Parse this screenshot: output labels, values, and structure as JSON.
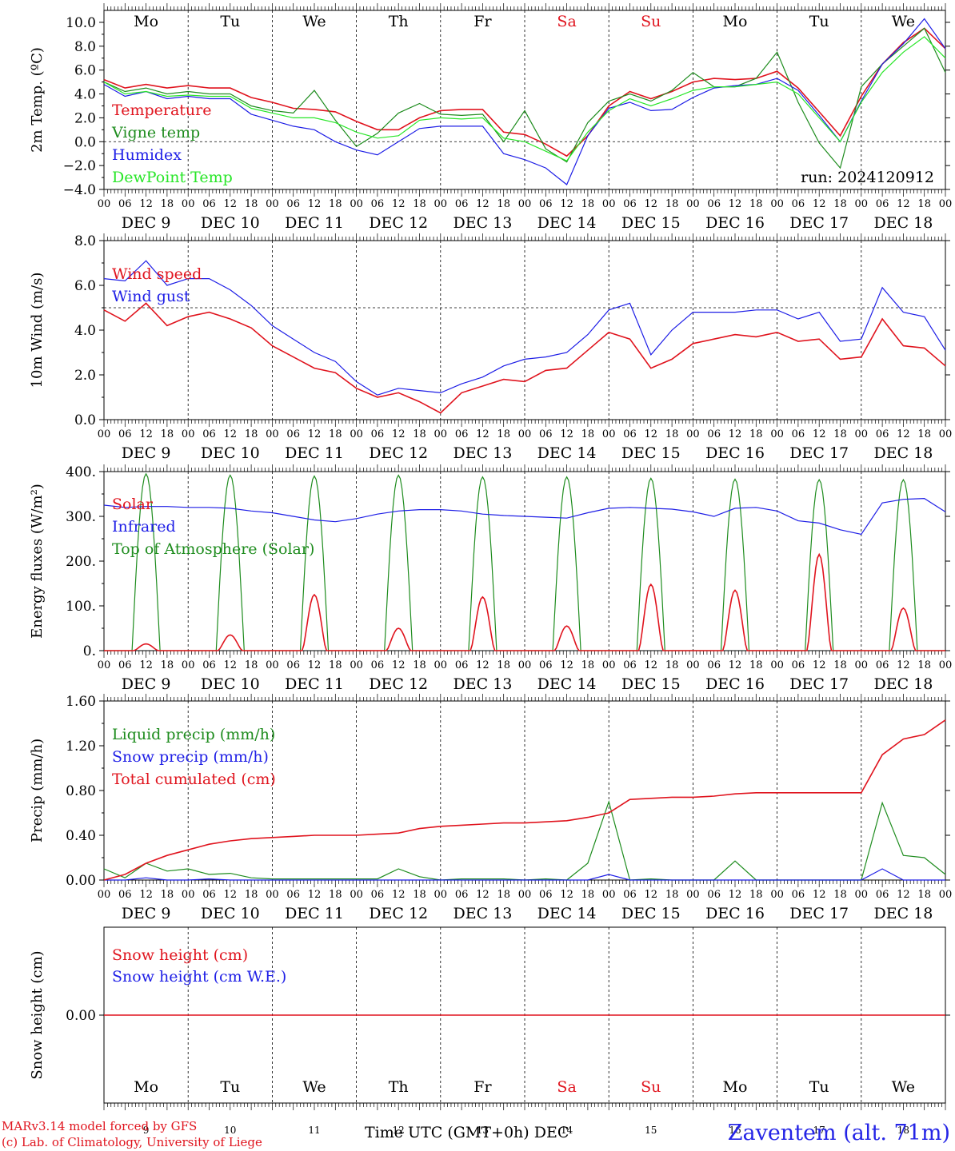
{
  "colors": {
    "red": "#e0141e",
    "green": "#1e8c1e",
    "blue": "#1e1ee6",
    "light_green": "#28e628",
    "weekend": "#e0141e"
  },
  "weekdays": [
    "Mo",
    "Tu",
    "We",
    "Th",
    "Fr",
    "Sa",
    "Su",
    "Mo",
    "Tu",
    "We"
  ],
  "weekend_flags": [
    false,
    false,
    false,
    false,
    false,
    true,
    true,
    false,
    false,
    false
  ],
  "date_labels": [
    "DEC  9",
    "DEC 10",
    "DEC 11",
    "DEC 12",
    "DEC 13",
    "DEC 14",
    "DEC 15",
    "DEC 16",
    "DEC 17",
    "DEC 18"
  ],
  "day_numbers": [
    "9",
    "10",
    "11",
    "12",
    "13",
    "14",
    "15",
    "16",
    "17",
    "18"
  ],
  "hour_ticks": [
    "00",
    "06",
    "12",
    "18"
  ],
  "hour_end": "00",
  "footer": {
    "model": "MARv3.14 model forced by GFS",
    "credit": "(c) Lab. of Climatology, University of Liege",
    "xaxis": "Time UTC (GMT+0h) DEC",
    "station": "Zaventem (alt. 71m)"
  },
  "chart_data": [
    {
      "type": "line",
      "ylabel": "2m Temp. (ºC)",
      "ylim": [
        -4,
        11
      ],
      "yticks": [
        -4,
        -2,
        0,
        2,
        4,
        6,
        8,
        10
      ],
      "ytick_labels": [
        "−4.0",
        "−2.0",
        "0.0",
        "2.0",
        "4.0",
        "6.0",
        "8.0",
        "10.0"
      ],
      "reference_line": 0,
      "annotation": "run: 2024120912",
      "legend": [
        "Temperature",
        "Vigne temp",
        "Humidex",
        "DewPoint Temp"
      ],
      "x_hours": [
        0,
        6,
        12,
        18,
        24,
        30,
        36,
        42,
        48,
        54,
        60,
        66,
        72,
        78,
        84,
        90,
        96,
        102,
        108,
        114,
        120,
        126,
        132,
        138,
        144,
        150,
        156,
        162,
        168,
        174,
        180,
        186,
        192,
        198,
        204,
        210,
        216,
        222,
        228,
        234,
        240
      ],
      "series": [
        {
          "name": "Temperature",
          "color": "red",
          "values": [
            5.2,
            4.5,
            4.8,
            4.5,
            4.7,
            4.5,
            4.5,
            3.7,
            3.3,
            2.8,
            2.7,
            2.5,
            1.7,
            1.0,
            1.0,
            2.0,
            2.6,
            2.7,
            2.7,
            0.8,
            0.6,
            -0.2,
            -1.2,
            0.5,
            3.0,
            4.2,
            3.6,
            4.2,
            5.0,
            5.3,
            5.2,
            5.3,
            5.9,
            4.5,
            2.5,
            0.5,
            3.8,
            6.5,
            8.3,
            9.5,
            7.8
          ]
        },
        {
          "name": "Vigne temp",
          "color": "green",
          "values": [
            5.0,
            4.2,
            4.5,
            4.0,
            4.2,
            4.0,
            4.0,
            3.0,
            2.6,
            2.4,
            4.3,
            1.8,
            -0.4,
            0.7,
            2.4,
            3.2,
            2.3,
            2.2,
            2.3,
            0.0,
            2.6,
            -0.6,
            -1.7,
            1.6,
            3.4,
            4.0,
            3.4,
            4.3,
            5.8,
            4.6,
            4.6,
            5.3,
            7.5,
            3.3,
            -0.1,
            -2.2,
            4.6,
            6.5,
            8.0,
            9.5,
            5.8
          ]
        },
        {
          "name": "Humidex",
          "color": "blue",
          "values": [
            4.8,
            3.8,
            4.2,
            3.6,
            3.8,
            3.6,
            3.6,
            2.3,
            1.8,
            1.3,
            1.0,
            0.0,
            -0.7,
            -1.1,
            0.0,
            1.1,
            1.3,
            1.3,
            1.3,
            -1.0,
            -1.5,
            -2.2,
            -3.6,
            0.5,
            2.8,
            3.3,
            2.6,
            2.7,
            3.7,
            4.5,
            4.7,
            4.8,
            5.3,
            4.3,
            2.2,
            0.0,
            3.4,
            6.5,
            8.2,
            10.3,
            7.8
          ]
        },
        {
          "name": "DewPoint Temp",
          "color": "light_green",
          "values": [
            5.0,
            4.0,
            4.2,
            3.8,
            3.9,
            3.8,
            3.8,
            2.8,
            2.4,
            2.0,
            2.0,
            1.6,
            0.8,
            0.3,
            0.5,
            1.8,
            2.0,
            1.9,
            2.0,
            0.3,
            0.0,
            -0.8,
            -1.6,
            0.8,
            2.6,
            3.6,
            3.0,
            3.6,
            4.3,
            4.6,
            4.6,
            4.8,
            5.0,
            4.0,
            2.0,
            0.0,
            3.3,
            5.8,
            7.5,
            8.8,
            7.0
          ]
        }
      ]
    },
    {
      "type": "line",
      "ylabel": "10m Wind (m/s)",
      "ylim": [
        0,
        8
      ],
      "yticks": [
        0,
        2,
        4,
        6,
        8
      ],
      "ytick_labels": [
        "0.0",
        "2.0",
        "4.0",
        "6.0",
        "8.0"
      ],
      "reference_line": 5,
      "legend": [
        "Wind speed",
        "Wind gust"
      ],
      "x_hours": [
        0,
        6,
        12,
        18,
        24,
        30,
        36,
        42,
        48,
        54,
        60,
        66,
        72,
        78,
        84,
        90,
        96,
        102,
        108,
        114,
        120,
        126,
        132,
        138,
        144,
        150,
        156,
        162,
        168,
        174,
        180,
        186,
        192,
        198,
        204,
        210,
        216,
        222,
        228,
        234,
        240
      ],
      "series": [
        {
          "name": "Wind speed",
          "color": "red",
          "values": [
            4.9,
            4.4,
            5.2,
            4.2,
            4.6,
            4.8,
            4.5,
            4.1,
            3.3,
            2.8,
            2.3,
            2.1,
            1.4,
            1.0,
            1.2,
            0.8,
            0.3,
            1.2,
            1.5,
            1.8,
            1.7,
            2.2,
            2.3,
            3.1,
            3.9,
            3.6,
            2.3,
            2.7,
            3.4,
            3.6,
            3.8,
            3.7,
            3.9,
            3.5,
            3.6,
            2.7,
            2.8,
            4.5,
            3.3,
            3.2,
            2.4
          ]
        },
        {
          "name": "Wind gust",
          "color": "blue",
          "values": [
            6.3,
            6.2,
            7.1,
            6.0,
            6.3,
            6.3,
            5.8,
            5.1,
            4.2,
            3.6,
            3.0,
            2.6,
            1.7,
            1.1,
            1.4,
            1.3,
            1.2,
            1.6,
            1.9,
            2.4,
            2.7,
            2.8,
            3.0,
            3.8,
            4.9,
            5.2,
            2.9,
            4.0,
            4.8,
            4.8,
            4.8,
            4.9,
            4.9,
            4.5,
            4.8,
            3.5,
            3.6,
            5.9,
            4.8,
            4.6,
            3.1
          ]
        }
      ]
    },
    {
      "type": "line",
      "ylabel": "Energy fluxes (W/m²)",
      "ylim": [
        0,
        400
      ],
      "yticks": [
        0,
        100,
        200,
        300,
        400
      ],
      "ytick_labels": [
        "0.",
        "100.",
        "200.",
        "300.",
        "400."
      ],
      "legend": [
        "Solar",
        "Infrared",
        "Top of Atmosphere (Solar)"
      ],
      "daily_toa_peak": [
        395,
        392,
        390,
        392,
        388,
        388,
        385,
        383,
        382,
        382
      ],
      "daily_solar_peak": [
        15,
        35,
        125,
        50,
        120,
        55,
        148,
        135,
        215,
        95
      ],
      "x_hours": [
        0,
        6,
        12,
        18,
        24,
        30,
        36,
        42,
        48,
        54,
        60,
        66,
        72,
        78,
        84,
        90,
        96,
        102,
        108,
        114,
        120,
        126,
        132,
        138,
        144,
        150,
        156,
        162,
        168,
        174,
        180,
        186,
        192,
        198,
        204,
        210,
        216,
        222,
        228,
        234,
        240
      ],
      "series": [
        {
          "name": "Infrared",
          "color": "blue",
          "values": [
            325,
            320,
            322,
            322,
            320,
            320,
            318,
            312,
            308,
            300,
            292,
            288,
            295,
            305,
            312,
            315,
            315,
            312,
            305,
            302,
            300,
            298,
            296,
            308,
            318,
            320,
            318,
            316,
            310,
            300,
            318,
            320,
            312,
            290,
            285,
            270,
            260,
            330,
            338,
            340,
            310
          ]
        }
      ]
    },
    {
      "type": "line",
      "ylabel": "Precip (mm/h)",
      "ylim": [
        0,
        1.6
      ],
      "yticks": [
        0,
        0.4,
        0.8,
        1.2,
        1.6
      ],
      "ytick_labels": [
        "0.00",
        "0.40",
        "0.80",
        "1.20",
        "1.60"
      ],
      "legend": [
        "Liquid precip (mm/h)",
        "Snow precip (mm/h)",
        "Total cumulated (cm)"
      ],
      "x_hours": [
        0,
        6,
        12,
        18,
        24,
        30,
        36,
        42,
        48,
        54,
        60,
        66,
        72,
        78,
        84,
        90,
        96,
        102,
        108,
        114,
        120,
        126,
        132,
        138,
        144,
        150,
        156,
        162,
        168,
        174,
        180,
        186,
        192,
        198,
        204,
        210,
        216,
        222,
        228,
        234,
        240
      ],
      "series": [
        {
          "name": "Liquid precip (mm/h)",
          "color": "green",
          "values": [
            0.1,
            0.02,
            0.15,
            0.08,
            0.1,
            0.05,
            0.06,
            0.02,
            0.01,
            0.01,
            0.01,
            0.01,
            0.01,
            0.01,
            0.1,
            0.03,
            0.0,
            0.01,
            0.01,
            0.01,
            0.0,
            0.01,
            0.0,
            0.15,
            0.7,
            0.0,
            0.01,
            0.0,
            0.0,
            0.0,
            0.17,
            0.0,
            0.0,
            0.0,
            0.0,
            0.0,
            0.0,
            0.69,
            0.22,
            0.2,
            0.05
          ]
        },
        {
          "name": "Snow precip (mm/h)",
          "color": "blue",
          "values": [
            0.0,
            0.0,
            0.02,
            0.0,
            0.0,
            0.01,
            0.0,
            0.0,
            0.0,
            0.0,
            0.0,
            0.0,
            0.0,
            0.0,
            0.0,
            0.0,
            0.0,
            0.0,
            0.0,
            0.0,
            0.0,
            0.0,
            0.0,
            0.0,
            0.05,
            0.0,
            0.0,
            0.0,
            0.0,
            0.0,
            0.0,
            0.0,
            0.0,
            0.0,
            0.0,
            0.0,
            0.0,
            0.1,
            0.0,
            0.0,
            0.0
          ]
        },
        {
          "name": "Total cumulated (cm)",
          "color": "red",
          "values": [
            0.0,
            0.05,
            0.15,
            0.22,
            0.27,
            0.32,
            0.35,
            0.37,
            0.38,
            0.39,
            0.4,
            0.4,
            0.4,
            0.41,
            0.42,
            0.46,
            0.48,
            0.49,
            0.5,
            0.51,
            0.51,
            0.52,
            0.53,
            0.56,
            0.6,
            0.72,
            0.73,
            0.74,
            0.74,
            0.75,
            0.77,
            0.78,
            0.78,
            0.78,
            0.78,
            0.78,
            0.78,
            1.12,
            1.26,
            1.3,
            1.43
          ]
        }
      ]
    },
    {
      "type": "line",
      "ylabel": "Snow height (cm)",
      "ylim": [
        -0.1,
        0.1
      ],
      "yticks": [
        0
      ],
      "ytick_labels": [
        "0.00"
      ],
      "legend": [
        "Snow height (cm)",
        "Snow height (cm W.E.)"
      ],
      "x_hours": [
        0,
        240
      ],
      "series": [
        {
          "name": "Snow height (cm)",
          "color": "red",
          "values": [
            0,
            0
          ]
        }
      ]
    }
  ]
}
